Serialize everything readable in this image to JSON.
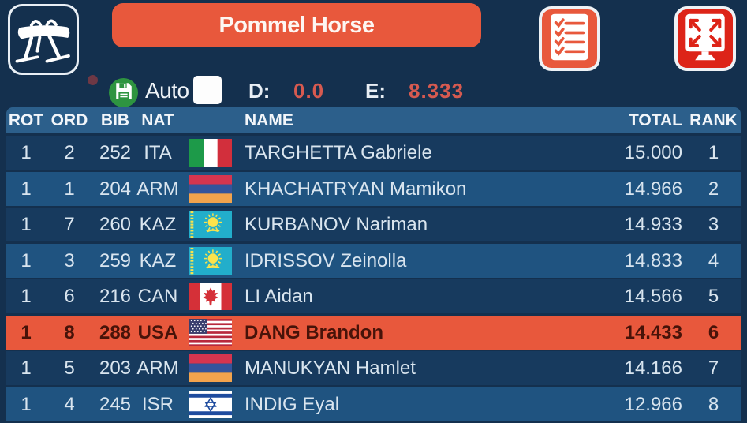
{
  "header": {
    "apparatus_icon": "pommel-horse-icon",
    "title": "Pommel Horse",
    "checklist_icon": "checklist-icon",
    "fullscreen_icon": "fullscreen-icon"
  },
  "toolbar": {
    "save_icon": "save-icon",
    "auto_label": "Auto",
    "auto_checked": false,
    "d_label": "D:",
    "d_value": "0.0",
    "e_label": "E:",
    "e_value": "8.333"
  },
  "table": {
    "columns": {
      "rot": "ROT",
      "ord": "ORD",
      "bib": "BIB",
      "nat": "NAT",
      "name": "NAME",
      "total": "TOTAL",
      "rank": "RANK"
    },
    "rows": [
      {
        "rot": "1",
        "ord": "2",
        "bib": "252",
        "nat": "ITA",
        "flag": "ITA",
        "name": "TARGHETTA Gabriele",
        "total": "15.000",
        "rank": "1",
        "highlighted": false
      },
      {
        "rot": "1",
        "ord": "1",
        "bib": "204",
        "nat": "ARM",
        "flag": "ARM",
        "name": "KHACHATRYAN Mamikon",
        "total": "14.966",
        "rank": "2",
        "highlighted": false
      },
      {
        "rot": "1",
        "ord": "7",
        "bib": "260",
        "nat": "KAZ",
        "flag": "KAZ",
        "name": "KURBANOV Nariman",
        "total": "14.933",
        "rank": "3",
        "highlighted": false
      },
      {
        "rot": "1",
        "ord": "3",
        "bib": "259",
        "nat": "KAZ",
        "flag": "KAZ",
        "name": "IDRISSOV Zeinolla",
        "total": "14.833",
        "rank": "4",
        "highlighted": false
      },
      {
        "rot": "1",
        "ord": "6",
        "bib": "216",
        "nat": "CAN",
        "flag": "CAN",
        "name": "LI Aidan",
        "total": "14.566",
        "rank": "5",
        "highlighted": false
      },
      {
        "rot": "1",
        "ord": "8",
        "bib": "288",
        "nat": "USA",
        "flag": "USA",
        "name": "DANG Brandon",
        "total": "14.433",
        "rank": "6",
        "highlighted": true
      },
      {
        "rot": "1",
        "ord": "5",
        "bib": "203",
        "nat": "ARM",
        "flag": "ARM",
        "name": "MANUKYAN Hamlet",
        "total": "14.166",
        "rank": "7",
        "highlighted": false
      },
      {
        "rot": "1",
        "ord": "4",
        "bib": "245",
        "nat": "ISR",
        "flag": "ISR",
        "name": "INDIG Eyal",
        "total": "12.966",
        "rank": "8",
        "highlighted": false
      }
    ]
  },
  "colors": {
    "background": "#14304e",
    "accent_orange": "#e8583c",
    "accent_red": "#dd2418",
    "header_bar": "#2c5f8b",
    "row_dark": "#173a5e",
    "row_light": "#1f5380",
    "row_highlight": "#e8583c",
    "row_text": "#d9e5ef",
    "highlight_text": "#471309",
    "value_red": "#d65a50",
    "save_green": "#2e9440"
  }
}
